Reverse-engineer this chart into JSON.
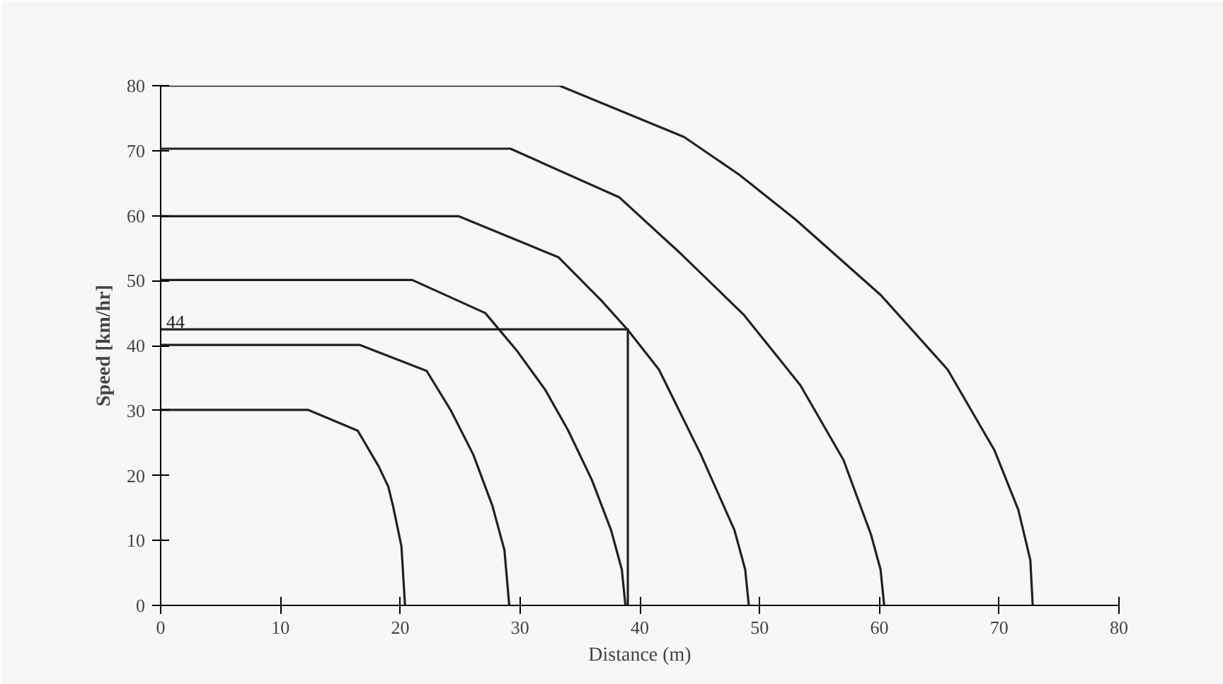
{
  "chart_data": {
    "type": "line",
    "xlabel": "Distance (m)",
    "ylabel": "Speed [km/hr]",
    "xlim": [
      0,
      80
    ],
    "ylim": [
      0,
      80
    ],
    "xticks": [
      0,
      10,
      20,
      30,
      40,
      50,
      60,
      70,
      80
    ],
    "yticks": [
      0,
      10,
      20,
      30,
      40,
      50,
      60,
      70,
      80
    ],
    "grid": false,
    "marker": "none",
    "line_style": "solid",
    "series": [
      {
        "color": "#222222",
        "x": [
          0,
          12.3,
          16.45,
          18.2,
          19.0,
          19.4,
          20.1,
          20.4
        ],
        "values": [
          30.1,
          30.1,
          26.9,
          21.4,
          18.3,
          15.3,
          9.1,
          0
        ]
      },
      {
        "color": "#222222",
        "x": [
          0,
          16.6,
          22.2,
          24.2,
          26.1,
          27.7,
          28.7,
          29.1
        ],
        "values": [
          40.1,
          40.1,
          36.1,
          30.1,
          23.2,
          15.3,
          8.5,
          0
        ]
      },
      {
        "color": "#222222",
        "x": [
          0,
          21.0,
          27.1,
          29.7,
          32.1,
          34.0,
          36.0,
          37.6,
          38.5,
          38.8
        ],
        "values": [
          50.1,
          50.1,
          45.0,
          39.3,
          33.2,
          27.0,
          19.3,
          11.6,
          5.5,
          0
        ]
      },
      {
        "color": "#222222",
        "x": [
          0,
          24.9,
          33.2,
          36.8,
          39.0,
          41.6,
          45.1,
          47.9,
          48.8,
          49.1
        ],
        "values": [
          59.9,
          59.9,
          53.6,
          46.9,
          42.4,
          36.3,
          23.2,
          11.6,
          5.5,
          0
        ]
      },
      {
        "color": "#222222",
        "x": [
          0,
          29.2,
          38.3,
          43.5,
          48.7,
          53.4,
          57.0,
          59.3,
          60.1,
          60.4
        ],
        "values": [
          70.3,
          70.3,
          62.8,
          54.0,
          44.7,
          33.9,
          22.4,
          10.9,
          5.5,
          0
        ]
      },
      {
        "color": "#222222",
        "x": [
          0,
          33.3,
          43.7,
          48.3,
          53.0,
          60.1,
          65.7,
          69.6,
          71.6,
          72.6,
          72.8
        ],
        "values": [
          80,
          80,
          72.1,
          66.3,
          59.4,
          47.8,
          36.3,
          23.9,
          14.7,
          7.0,
          0
        ]
      },
      {
        "color": "#222222",
        "x": [
          0,
          39.0,
          39.0
        ],
        "values": [
          42.5,
          42.5,
          0
        ]
      }
    ],
    "annotations": [
      {
        "text": "44",
        "x": 0,
        "y": 42.5
      }
    ]
  }
}
